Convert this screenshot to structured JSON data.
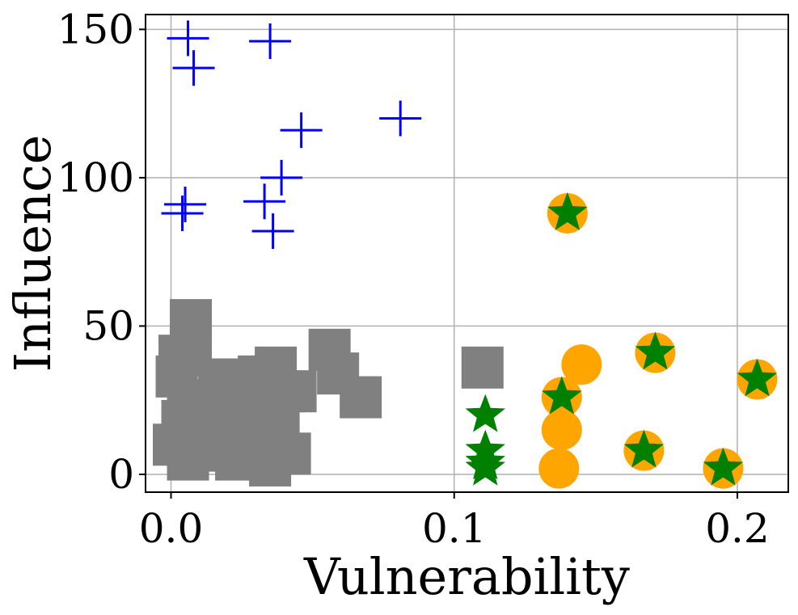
{
  "chart_data": {
    "type": "scatter",
    "title": "",
    "xlabel": "Vulnerability",
    "ylabel": "Influence",
    "xlim": [
      -0.009,
      0.218
    ],
    "ylim": [
      -6,
      155
    ],
    "grid": true,
    "x_ticks": [
      0.0,
      0.1,
      0.2
    ],
    "x_tick_labels": [
      "0.0",
      "0.1",
      "0.2"
    ],
    "y_ticks": [
      0,
      50,
      100,
      150
    ],
    "y_tick_labels": [
      "0",
      "50",
      "100",
      "150"
    ],
    "colors": {
      "plus": "#0000ff",
      "square": "#808080",
      "circle": "#ffa500",
      "star": "#008000"
    },
    "series": [
      {
        "name": "plus",
        "marker": "plus",
        "points": [
          [
            0.006,
            147
          ],
          [
            0.035,
            146
          ],
          [
            0.008,
            137
          ],
          [
            0.081,
            120
          ],
          [
            0.046,
            116
          ],
          [
            0.039,
            100
          ],
          [
            0.005,
            91
          ],
          [
            0.004,
            88
          ],
          [
            0.033,
            92
          ],
          [
            0.036,
            82
          ]
        ]
      },
      {
        "name": "square",
        "marker": "square",
        "points": [
          [
            0.007,
            52
          ],
          [
            0.007,
            44
          ],
          [
            0.003,
            40
          ],
          [
            0.002,
            33
          ],
          [
            0.006,
            25
          ],
          [
            0.004,
            18
          ],
          [
            0.001,
            10
          ],
          [
            0.006,
            5
          ],
          [
            0.012,
            22
          ],
          [
            0.014,
            8
          ],
          [
            0.017,
            32
          ],
          [
            0.02,
            15
          ],
          [
            0.024,
            30
          ],
          [
            0.023,
            5
          ],
          [
            0.02,
            24
          ],
          [
            0.026,
            10
          ],
          [
            0.027,
            20
          ],
          [
            0.029,
            26
          ],
          [
            0.031,
            33
          ],
          [
            0.034,
            31
          ],
          [
            0.037,
            36
          ],
          [
            0.036,
            25
          ],
          [
            0.038,
            17
          ],
          [
            0.033,
            10
          ],
          [
            0.035,
            3
          ],
          [
            0.037,
            12
          ],
          [
            0.04,
            28
          ],
          [
            0.044,
            28
          ],
          [
            0.042,
            7
          ],
          [
            0.056,
            42
          ],
          [
            0.059,
            34
          ],
          [
            0.067,
            26
          ],
          [
            0.11,
            36
          ]
        ]
      },
      {
        "name": "circle",
        "marker": "circle",
        "points": [
          [
            0.14,
            88
          ],
          [
            0.145,
            37
          ],
          [
            0.138,
            26
          ],
          [
            0.138,
            15
          ],
          [
            0.137,
            2
          ],
          [
            0.171,
            41
          ],
          [
            0.167,
            8
          ],
          [
            0.195,
            2
          ],
          [
            0.207,
            32
          ]
        ]
      },
      {
        "name": "star",
        "marker": "star",
        "points": [
          [
            0.14,
            88
          ],
          [
            0.138,
            26
          ],
          [
            0.171,
            41
          ],
          [
            0.167,
            8
          ],
          [
            0.195,
            2
          ],
          [
            0.207,
            32
          ],
          [
            0.111,
            20
          ],
          [
            0.111,
            8
          ],
          [
            0.111,
            4
          ],
          [
            0.111,
            2
          ]
        ]
      }
    ]
  }
}
